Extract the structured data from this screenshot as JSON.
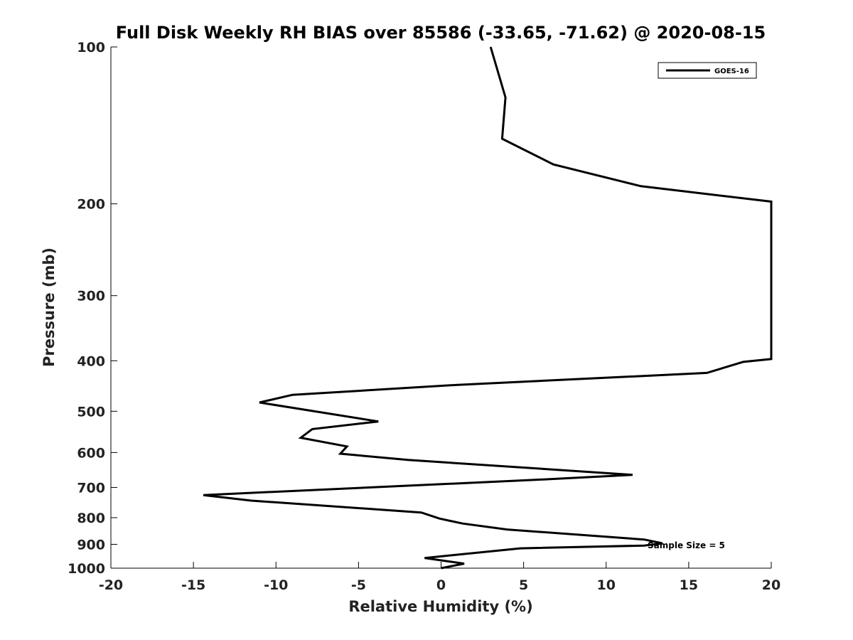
{
  "chart_data": {
    "type": "line",
    "title": "Full Disk Weekly RH BIAS over 85586 (-33.65, -71.62) @ 2020-08-15",
    "xlabel": "Relative Humidity (%)",
    "ylabel": "Pressure (mb)",
    "xlim": [
      -20,
      20
    ],
    "ylim": [
      1000,
      100
    ],
    "y_scale": "log",
    "y_inverted": true,
    "xticks": [
      -20,
      -15,
      -10,
      -5,
      0,
      5,
      10,
      15,
      20
    ],
    "xtick_labels": [
      "-20",
      "-15",
      "-10",
      "-5",
      "0",
      "5",
      "10",
      "15",
      "20"
    ],
    "yticks": [
      100,
      200,
      300,
      400,
      500,
      600,
      700,
      800,
      900,
      1000
    ],
    "ytick_labels": [
      "100",
      "200",
      "300",
      "400",
      "500",
      "600",
      "700",
      "800",
      "900",
      "1000"
    ],
    "grid": false,
    "legend_position": "top-right",
    "annotation": "Sample Size = 5",
    "series": [
      {
        "name": "GOES-16",
        "color": "#000000",
        "points": [
          {
            "p": 100,
            "x": 3.0
          },
          {
            "p": 125,
            "x": 3.9
          },
          {
            "p": 150,
            "x": 3.7
          },
          {
            "p": 168,
            "x": 6.8
          },
          {
            "p": 185,
            "x": 12.1
          },
          {
            "p": 198,
            "x": 20.0
          },
          {
            "p": 397,
            "x": 20.0
          },
          {
            "p": 402,
            "x": 18.3
          },
          {
            "p": 422,
            "x": 16.1
          },
          {
            "p": 445,
            "x": 1.0
          },
          {
            "p": 465,
            "x": -9.0
          },
          {
            "p": 481,
            "x": -11.0
          },
          {
            "p": 523,
            "x": -3.8
          },
          {
            "p": 541,
            "x": -7.8
          },
          {
            "p": 562,
            "x": -8.5
          },
          {
            "p": 584,
            "x": -5.7
          },
          {
            "p": 603,
            "x": -6.1
          },
          {
            "p": 620,
            "x": -2.0
          },
          {
            "p": 662,
            "x": 11.6
          },
          {
            "p": 677,
            "x": 5.7
          },
          {
            "p": 724,
            "x": -14.4
          },
          {
            "p": 742,
            "x": -11.5
          },
          {
            "p": 782,
            "x": -1.2
          },
          {
            "p": 803,
            "x": -0.1
          },
          {
            "p": 821,
            "x": 1.3
          },
          {
            "p": 843,
            "x": 4.0
          },
          {
            "p": 881,
            "x": 12.3
          },
          {
            "p": 896,
            "x": 13.4
          },
          {
            "p": 905,
            "x": 12.3
          },
          {
            "p": 916,
            "x": 4.8
          },
          {
            "p": 956,
            "x": -1.0
          },
          {
            "p": 980,
            "x": 1.4
          },
          {
            "p": 1000,
            "x": 0.0
          }
        ]
      }
    ]
  }
}
